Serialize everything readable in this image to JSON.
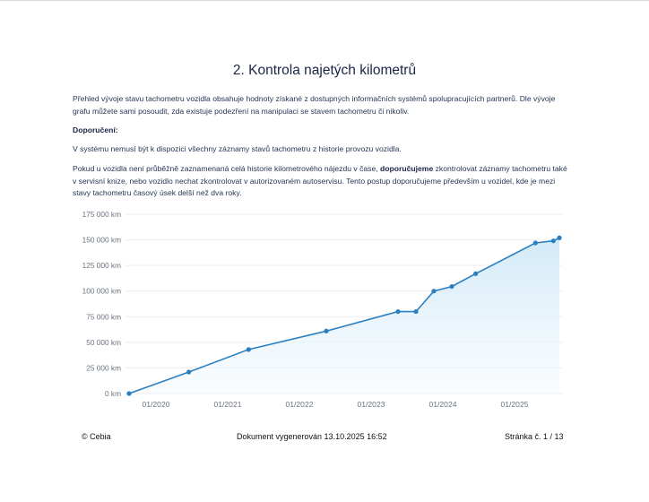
{
  "title": "2. Kontrola najetých kilometrů",
  "intro": "Přehled vývoje stavu tachometru vozidla obsahuje hodnoty získané z dostupných informačních systémů spolupracujících partnerů. Dle vývoje grafu můžete sami posoudit, zda existuje podezření na manipulaci se stavem tachometru či nikoliv.",
  "recommendation_heading": "Doporučení:",
  "note": "V systému nemusí být k dispozici všechny záznamy stavů tachometru z historie provozu vozidla.",
  "advice": {
    "before": "Pokud u vozidla není průběžně zaznamenaná celá historie kilometrového nájezdu v čase, ",
    "bold": "doporučujeme",
    "after": " zkontrolovat záznamy tachometru také v servisní knize, nebo vozidlo nechat zkontrolovat v autorizovaném autoservisu. Tento postup doporučujeme především u vozidel, kde je mezi stavy tachometru časový úsek delší než dva roky."
  },
  "chart_data": {
    "type": "area",
    "title": "",
    "xlabel": "",
    "ylabel": "",
    "x_tick_labels": [
      "01/2020",
      "01/2021",
      "01/2022",
      "01/2023",
      "01/2024",
      "01/2025"
    ],
    "y_tick_labels": [
      "0 km",
      "25 000 km",
      "50 000 km",
      "75 000 km",
      "100 000 km",
      "125 000 km",
      "150 000 km",
      "175 000 km"
    ],
    "ylim": [
      0,
      175000
    ],
    "xlim": [
      "2019-08",
      "2025-08"
    ],
    "grid": true,
    "line_color": "#2a7fc1",
    "fill_color": "#d6ecf8",
    "points": [
      {
        "date": "2019-08",
        "km": 0
      },
      {
        "date": "2020-06",
        "km": 21000
      },
      {
        "date": "2021-04",
        "km": 43000
      },
      {
        "date": "2022-05",
        "km": 61000
      },
      {
        "date": "2023-05",
        "km": 80000
      },
      {
        "date": "2023-08",
        "km": 80000
      },
      {
        "date": "2023-11",
        "km": 100000
      },
      {
        "date": "2024-02",
        "km": 104500
      },
      {
        "date": "2024-06",
        "km": 117000
      },
      {
        "date": "2025-04",
        "km": 147000
      },
      {
        "date": "2025-07",
        "km": 149000
      },
      {
        "date": "2025-08",
        "km": 152000
      }
    ]
  },
  "footer": {
    "copyright": "© Cebia",
    "generated": "Dokument vygenerován 13.10.2025 16:52",
    "page": "Stránka č. 1 / 13"
  }
}
